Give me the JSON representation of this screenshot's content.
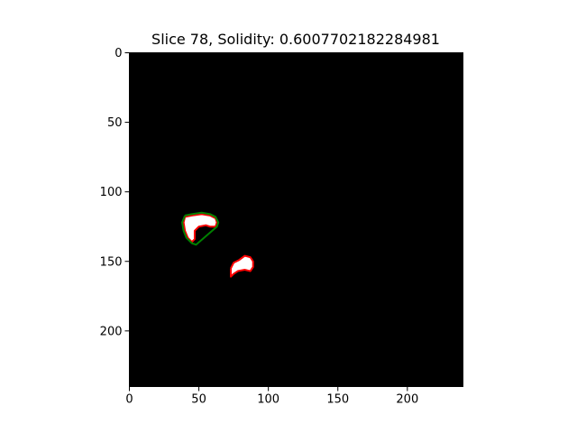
{
  "figure": {
    "title": "Slice 78, Solidity: 0.6007702182284981"
  },
  "chart_data": {
    "type": "image",
    "title": "Slice 78, Solidity: 0.6007702182284981",
    "image_size": [
      240,
      240
    ],
    "xlim": [
      0,
      240
    ],
    "ylim": [
      240,
      0
    ],
    "x_ticks": [
      0,
      50,
      100,
      150,
      200
    ],
    "y_ticks": [
      0,
      50,
      100,
      150,
      200
    ],
    "x_tick_labels": [
      "0",
      "50",
      "100",
      "150",
      "200"
    ],
    "y_tick_labels": [
      "0",
      "50",
      "100",
      "150",
      "200"
    ],
    "grid": false,
    "background_color": "#000000",
    "blobs": [
      {
        "fill": "#ffffff",
        "points": [
          [
            40,
            118
          ],
          [
            45,
            117
          ],
          [
            52,
            116
          ],
          [
            58,
            117
          ],
          [
            62,
            119
          ],
          [
            63,
            122
          ],
          [
            62,
            125
          ],
          [
            58,
            125
          ],
          [
            55,
            124
          ],
          [
            50,
            125
          ],
          [
            47,
            128
          ],
          [
            47,
            134
          ],
          [
            45,
            136
          ],
          [
            42,
            133
          ],
          [
            40,
            128
          ],
          [
            39,
            122
          ]
        ]
      },
      {
        "fill": "#ffffff",
        "points": [
          [
            73,
            155
          ],
          [
            75,
            151
          ],
          [
            79,
            149
          ],
          [
            83,
            146
          ],
          [
            87,
            147
          ],
          [
            89,
            150
          ],
          [
            89,
            154
          ],
          [
            87,
            157
          ],
          [
            83,
            156
          ],
          [
            78,
            157
          ],
          [
            75,
            159
          ],
          [
            73,
            161
          ]
        ]
      }
    ],
    "contours": [
      {
        "color": "#ff0000",
        "points": [
          [
            40,
            118
          ],
          [
            45,
            117
          ],
          [
            52,
            116
          ],
          [
            58,
            117
          ],
          [
            62,
            119
          ],
          [
            63,
            122
          ],
          [
            62,
            125
          ],
          [
            58,
            125
          ],
          [
            55,
            124
          ],
          [
            50,
            125
          ],
          [
            47,
            128
          ],
          [
            47,
            134
          ],
          [
            45,
            136
          ],
          [
            42,
            133
          ],
          [
            40,
            128
          ],
          [
            39,
            122
          ],
          [
            40,
            118
          ]
        ]
      },
      {
        "color": "#ff0000",
        "points": [
          [
            73,
            155
          ],
          [
            75,
            151
          ],
          [
            79,
            149
          ],
          [
            83,
            146
          ],
          [
            87,
            147
          ],
          [
            89,
            150
          ],
          [
            89,
            154
          ],
          [
            87,
            157
          ],
          [
            83,
            156
          ],
          [
            78,
            157
          ],
          [
            75,
            159
          ],
          [
            73,
            161
          ],
          [
            73,
            155
          ]
        ]
      },
      {
        "color": "#008000",
        "points": [
          [
            40,
            117
          ],
          [
            45,
            116
          ],
          [
            52,
            115
          ],
          [
            58,
            116
          ],
          [
            62,
            118
          ],
          [
            64,
            122
          ],
          [
            63,
            125
          ],
          [
            48,
            138
          ],
          [
            45,
            137
          ],
          [
            41,
            133
          ],
          [
            39,
            128
          ],
          [
            38,
            122
          ],
          [
            40,
            117
          ]
        ]
      }
    ]
  }
}
